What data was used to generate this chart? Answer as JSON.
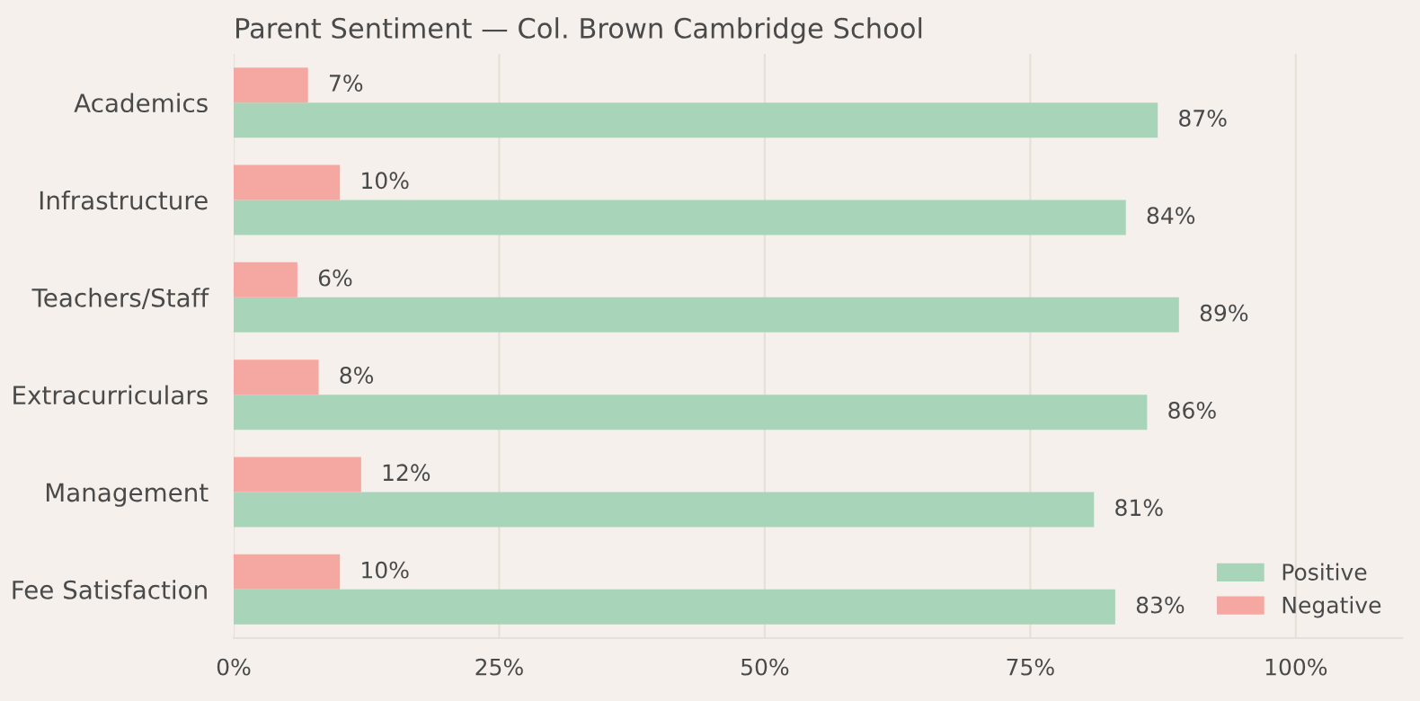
{
  "chart_data": {
    "type": "bar",
    "orientation": "horizontal",
    "title": "Parent Sentiment — Col. Brown Cambridge School",
    "categories": [
      "Academics",
      "Infrastructure",
      "Teachers/Staff",
      "Extracurriculars",
      "Management",
      "Fee Satisfaction"
    ],
    "series": [
      {
        "name": "Positive",
        "color": "#a8d5b9",
        "values": [
          87,
          84,
          89,
          86,
          81,
          83
        ],
        "value_labels": [
          "87%",
          "84%",
          "89%",
          "86%",
          "81%",
          "83%"
        ]
      },
      {
        "name": "Negative",
        "color": "#f5a8a2",
        "values": [
          7,
          10,
          6,
          8,
          12,
          10
        ],
        "value_labels": [
          "7%",
          "10%",
          "6%",
          "8%",
          "12%",
          "10%"
        ]
      }
    ],
    "xlim": [
      0,
      110
    ],
    "xticks": [
      {
        "value": 0,
        "label": "0%"
      },
      {
        "value": 25,
        "label": "25%"
      },
      {
        "value": 50,
        "label": "50%"
      },
      {
        "value": 75,
        "label": "75%"
      },
      {
        "value": 100,
        "label": "100%"
      }
    ],
    "grid": "x",
    "legend": "bottom right"
  }
}
